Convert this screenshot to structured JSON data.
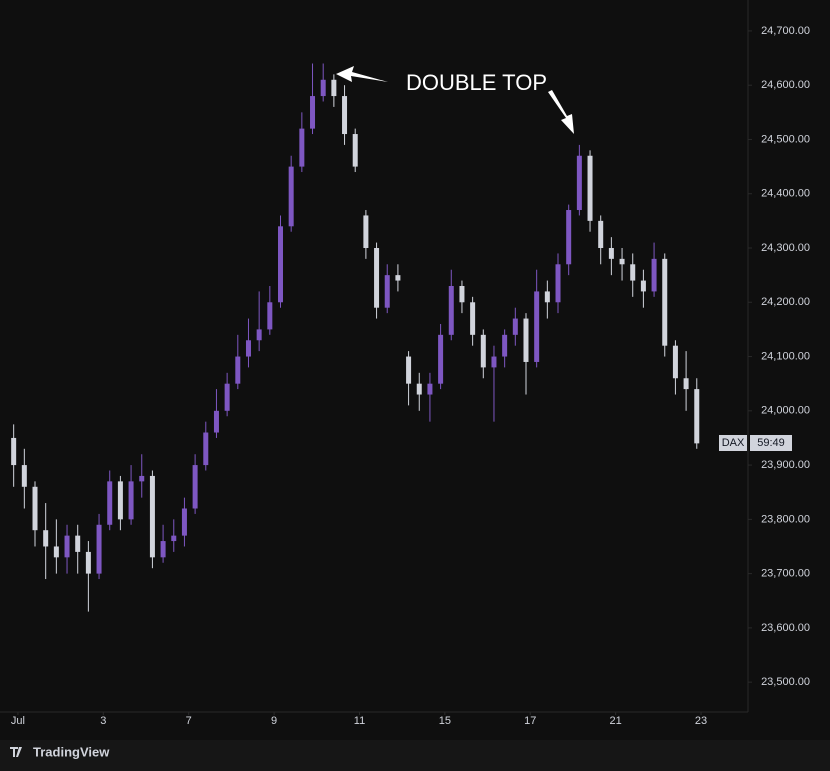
{
  "chart_data": {
    "type": "candlestick",
    "annotation": "DOUBLE TOP",
    "symbol_label": "DAX",
    "countdown_label": "59:49",
    "brand": "TradingView",
    "up_color": "#7e57c2",
    "down_color": "#d1d4dc",
    "x": [
      -0.1,
      0.15,
      0.4,
      0.65,
      0.9,
      1.15,
      1.4,
      1.65,
      1.9,
      2.15,
      2.4,
      2.65,
      2.9,
      3.15,
      3.4,
      3.65,
      3.9,
      4.15,
      4.4,
      4.65,
      4.9,
      5.15,
      5.4,
      5.65,
      5.9,
      6.15,
      6.4,
      6.65,
      6.9,
      7.15,
      7.4,
      7.65,
      7.9,
      8.15,
      8.4,
      8.65,
      8.9,
      9.15,
      9.4,
      9.65,
      9.9,
      10.15,
      10.4,
      10.65,
      10.9,
      11.15,
      11.4,
      11.65,
      11.9,
      12.15,
      12.4,
      12.65,
      12.9,
      13.15,
      13.4,
      13.65,
      13.9,
      14.15,
      14.4,
      14.65,
      14.9,
      15.15,
      15.4,
      15.65,
      15.9
    ],
    "open": [
      23950,
      23900,
      23860,
      23780,
      23750,
      23730,
      23770,
      23740,
      23700,
      23790,
      23870,
      23800,
      23870,
      23880,
      23730,
      23760,
      23770,
      23820,
      23900,
      23960,
      24000,
      24050,
      24100,
      24130,
      24150,
      24200,
      24340,
      24450,
      24520,
      24580,
      24610,
      24580,
      24510,
      24360,
      24300,
      24190,
      24250,
      24100,
      24050,
      24030,
      24050,
      24140,
      24230,
      24200,
      24140,
      24080,
      24100,
      24140,
      24170,
      24090,
      24220,
      24200,
      24270,
      24370,
      24470,
      24350,
      24300,
      24280,
      24270,
      24240,
      24220,
      24280,
      24120,
      24060,
      24040
    ],
    "high": [
      23975,
      23930,
      23870,
      23830,
      23800,
      23790,
      23790,
      23760,
      23810,
      23890,
      23880,
      23900,
      23920,
      23890,
      23790,
      23800,
      23840,
      23920,
      23980,
      24040,
      24070,
      24140,
      24170,
      24220,
      24230,
      24360,
      24470,
      24550,
      24640,
      24640,
      24620,
      24600,
      24520,
      24370,
      24310,
      24270,
      24270,
      24110,
      24070,
      24070,
      24160,
      24260,
      24240,
      24210,
      24150,
      24120,
      24150,
      24190,
      24180,
      24260,
      24240,
      24290,
      24380,
      24490,
      24480,
      24360,
      24320,
      24300,
      24290,
      24260,
      24310,
      24290,
      24130,
      24110,
      24060
    ],
    "low": [
      23860,
      23820,
      23750,
      23690,
      23700,
      23700,
      23700,
      23630,
      23690,
      23780,
      23780,
      23790,
      23840,
      23710,
      23720,
      23740,
      23750,
      23810,
      23890,
      23950,
      23990,
      24040,
      24080,
      24110,
      24140,
      24190,
      24330,
      24440,
      24510,
      24570,
      24560,
      24490,
      24440,
      24280,
      24170,
      24180,
      24220,
      24010,
      24000,
      23980,
      24040,
      24130,
      24180,
      24120,
      24060,
      23980,
      24080,
      24120,
      24030,
      24080,
      24170,
      24180,
      24250,
      24360,
      24330,
      24270,
      24250,
      24240,
      24210,
      24190,
      24210,
      24100,
      24030,
      24000,
      23930
    ],
    "close": [
      23900,
      23860,
      23780,
      23750,
      23730,
      23770,
      23740,
      23700,
      23790,
      23870,
      23800,
      23870,
      23880,
      23730,
      23760,
      23770,
      23820,
      23900,
      23960,
      24000,
      24050,
      24100,
      24130,
      24150,
      24200,
      24340,
      24450,
      24520,
      24580,
      24610,
      24580,
      24510,
      24450,
      24300,
      24190,
      24250,
      24240,
      24050,
      24030,
      24050,
      24140,
      24230,
      24200,
      24140,
      24080,
      24100,
      24140,
      24170,
      24090,
      24220,
      24200,
      24270,
      24370,
      24470,
      24350,
      24300,
      24280,
      24270,
      24240,
      24220,
      24280,
      24120,
      24060,
      24040,
      23940
    ],
    "xlim": [
      -0.42,
      17.1
    ],
    "xticks": [
      {
        "value": 0,
        "label": "Jul"
      },
      {
        "value": 2,
        "label": "3"
      },
      {
        "value": 4,
        "label": "7"
      },
      {
        "value": 6,
        "label": "9"
      },
      {
        "value": 8,
        "label": "11"
      },
      {
        "value": 10,
        "label": "15"
      },
      {
        "value": 12,
        "label": "17"
      },
      {
        "value": 14,
        "label": "21"
      },
      {
        "value": 16,
        "label": "23"
      }
    ],
    "ylim": [
      23445,
      24757
    ],
    "yticks": [
      {
        "value": 23500,
        "label": "23,500.00"
      },
      {
        "value": 23600,
        "label": "23,600.00"
      },
      {
        "value": 23700,
        "label": "23,700.00"
      },
      {
        "value": 23800,
        "label": "23,800.00"
      },
      {
        "value": 23900,
        "label": "23,900.00"
      },
      {
        "value": 24000,
        "label": "24,000.00"
      },
      {
        "value": 24100,
        "label": "24,100.00"
      },
      {
        "value": 24200,
        "label": "24,200.00"
      },
      {
        "value": 24300,
        "label": "24,300.00"
      },
      {
        "value": 24400,
        "label": "24,400.00"
      },
      {
        "value": 24500,
        "label": "24,500.00"
      },
      {
        "value": 24600,
        "label": "24,600.00"
      },
      {
        "value": 24700,
        "label": "24,700.00"
      }
    ]
  }
}
